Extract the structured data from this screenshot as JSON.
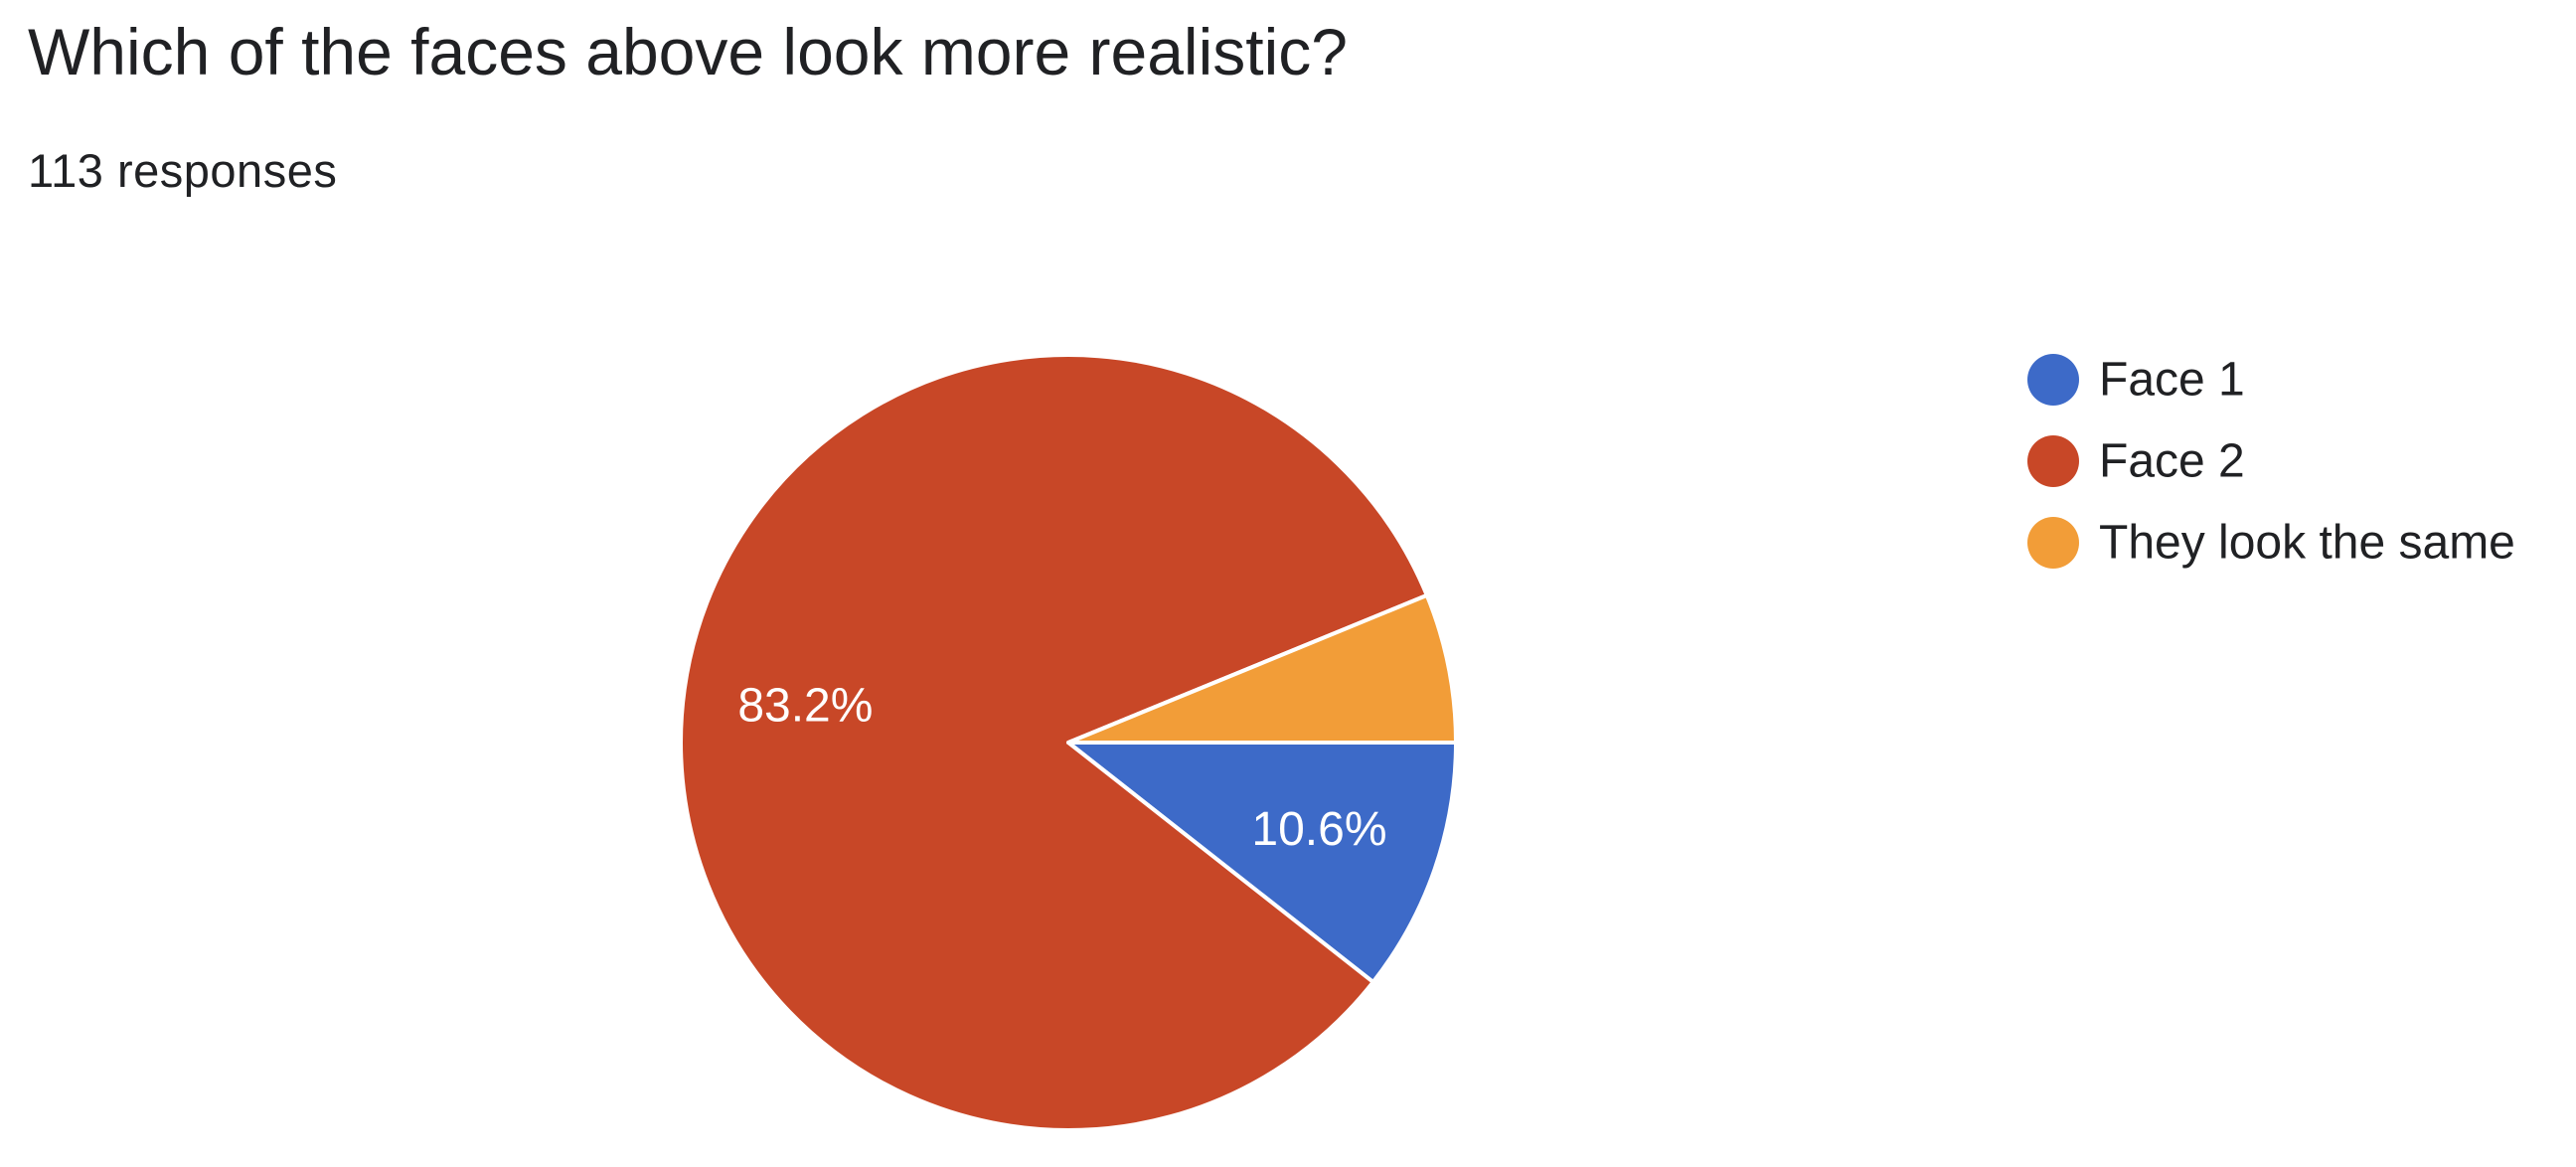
{
  "header": {
    "question": "Which of the faces above look more realistic?",
    "responses": "113 responses"
  },
  "chart_data": {
    "type": "pie",
    "categories": [
      "Face 1",
      "Face 2",
      "They look the same"
    ],
    "values": [
      10.6,
      83.2,
      6.2
    ],
    "labels": [
      "10.6%",
      "83.2%",
      ""
    ],
    "colors": [
      "#3d6ac8",
      "#c84727",
      "#f29d38"
    ],
    "legend_position": "right"
  }
}
